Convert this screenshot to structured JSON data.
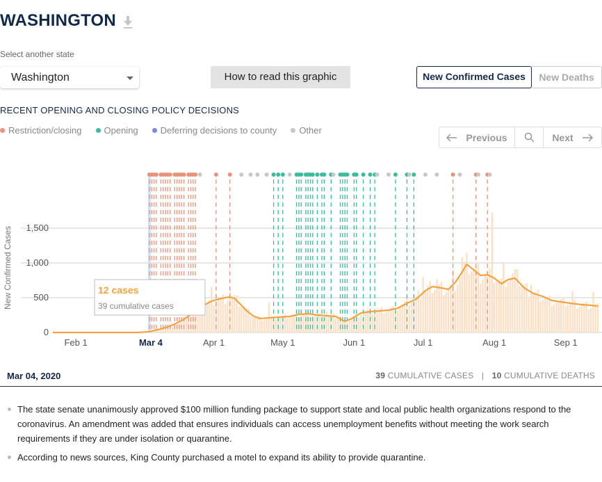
{
  "header": {
    "title": "WASHINGTON",
    "download_icon": "download-icon"
  },
  "state_select": {
    "label": "Select another state",
    "value": "Washington"
  },
  "how_to_button": "How to read this graphic",
  "toggle": {
    "active": "New Confirmed Cases",
    "inactive": "New Deaths"
  },
  "policy_section": {
    "title": "RECENT OPENING AND CLOSING POLICY DECISIONS",
    "legend": [
      {
        "label": "Restriction/closing",
        "color": "#e8937a"
      },
      {
        "label": "Opening",
        "color": "#3dbb9b"
      },
      {
        "label": "Deferring decisions to county",
        "color": "#7b86e8"
      },
      {
        "label": "Other",
        "color": "#c8c8c8"
      }
    ]
  },
  "nav": {
    "previous": "Previous",
    "next": "Next",
    "search_icon": "search-icon"
  },
  "tooltip": {
    "cases": "12 cases",
    "cumulative": "39 cumulative cases"
  },
  "selected_date_label": "Mar 4",
  "details": {
    "date": "Mar 04, 2020",
    "cumulative_cases_value": "39",
    "cumulative_cases_label": "CUMULATIVE CASES",
    "separator": "|",
    "cumulative_deaths_value": "10",
    "cumulative_deaths_label": "CUMULATIVE DEATHS"
  },
  "notes": [
    "The state senate unanimously approved $100 million funding package to support state and local public health organizations respond to the coronavirus. An amendment was added that ensures individuals can access unemployment benefits without meeting the work search requirements if they are under isolation or quarantine.",
    "According to news sources, King County purchased a motel to expand its ability to provide quarantine."
  ],
  "chart_data": {
    "type": "bar",
    "ylabel": "New Confirmed Cases",
    "yticks": [
      0,
      500,
      1000,
      1500
    ],
    "yticks_labels": [
      "0",
      "500",
      "1,000",
      "1,500"
    ],
    "ylim": [
      0,
      1800
    ],
    "x_start": "2020-01-22",
    "x_end": "2020-09-15",
    "x_ticks": [
      {
        "date": "2020-02-01",
        "label": "Feb 1"
      },
      {
        "date": "2020-03-01",
        "label": "M"
      },
      {
        "date": "2020-04-01",
        "label": "Apr 1"
      },
      {
        "date": "2020-05-01",
        "label": "May 1"
      },
      {
        "date": "2020-06-01",
        "label": "Jun 1"
      },
      {
        "date": "2020-07-01",
        "label": "Jul 1"
      },
      {
        "date": "2020-08-01",
        "label": "Aug 1"
      },
      {
        "date": "2020-09-01",
        "label": "Sep 1"
      }
    ],
    "selected_date": "2020-03-04",
    "grid": true,
    "series": [
      {
        "style": "bars",
        "color": "#fbe0c6"
      },
      {
        "name": "7-day average",
        "style": "line",
        "color": "#f5a341"
      }
    ],
    "average_points": [
      [
        "2020-01-22",
        0
      ],
      [
        "2020-02-28",
        0
      ],
      [
        "2020-03-04",
        12
      ],
      [
        "2020-03-10",
        60
      ],
      [
        "2020-03-15",
        120
      ],
      [
        "2020-03-19",
        190
      ],
      [
        "2020-03-23",
        280
      ],
      [
        "2020-03-27",
        380
      ],
      [
        "2020-03-31",
        450
      ],
      [
        "2020-04-03",
        480
      ],
      [
        "2020-04-06",
        500
      ],
      [
        "2020-04-08",
        510
      ],
      [
        "2020-04-10",
        490
      ],
      [
        "2020-04-13",
        390
      ],
      [
        "2020-04-15",
        320
      ],
      [
        "2020-04-18",
        240
      ],
      [
        "2020-04-21",
        200
      ],
      [
        "2020-04-25",
        210
      ],
      [
        "2020-04-29",
        220
      ],
      [
        "2020-05-04",
        230
      ],
      [
        "2020-05-08",
        260
      ],
      [
        "2020-05-12",
        270
      ],
      [
        "2020-05-16",
        250
      ],
      [
        "2020-05-20",
        240
      ],
      [
        "2020-05-24",
        230
      ],
      [
        "2020-05-28",
        160
      ],
      [
        "2020-05-31",
        200
      ],
      [
        "2020-06-04",
        280
      ],
      [
        "2020-06-08",
        300
      ],
      [
        "2020-06-12",
        310
      ],
      [
        "2020-06-16",
        320
      ],
      [
        "2020-06-20",
        350
      ],
      [
        "2020-06-24",
        420
      ],
      [
        "2020-06-28",
        480
      ],
      [
        "2020-07-02",
        600
      ],
      [
        "2020-07-05",
        660
      ],
      [
        "2020-07-09",
        640
      ],
      [
        "2020-07-12",
        620
      ],
      [
        "2020-07-15",
        720
      ],
      [
        "2020-07-18",
        870
      ],
      [
        "2020-07-20",
        980
      ],
      [
        "2020-07-23",
        900
      ],
      [
        "2020-07-26",
        820
      ],
      [
        "2020-07-29",
        830
      ],
      [
        "2020-08-01",
        780
      ],
      [
        "2020-08-04",
        700
      ],
      [
        "2020-08-07",
        760
      ],
      [
        "2020-08-10",
        780
      ],
      [
        "2020-08-14",
        640
      ],
      [
        "2020-08-18",
        560
      ],
      [
        "2020-08-22",
        520
      ],
      [
        "2020-08-26",
        460
      ],
      [
        "2020-08-30",
        440
      ],
      [
        "2020-09-03",
        420
      ],
      [
        "2020-09-08",
        400
      ],
      [
        "2020-09-12",
        390
      ],
      [
        "2020-09-15",
        380
      ]
    ],
    "bar_spikes": [
      [
        "2020-03-31",
        650
      ],
      [
        "2020-04-02",
        560
      ],
      [
        "2020-04-08",
        580
      ],
      [
        "2020-04-25",
        430
      ],
      [
        "2020-05-20",
        300
      ],
      [
        "2020-06-24",
        520
      ],
      [
        "2020-07-01",
        800
      ],
      [
        "2020-07-07",
        760
      ],
      [
        "2020-07-14",
        900
      ],
      [
        "2020-07-18",
        1080
      ],
      [
        "2020-07-25",
        1000
      ],
      [
        "2020-07-31",
        1720
      ],
      [
        "2020-08-05",
        1000
      ],
      [
        "2020-08-11",
        910
      ],
      [
        "2020-08-17",
        680
      ],
      [
        "2020-09-04",
        600
      ],
      [
        "2020-09-13",
        580
      ]
    ],
    "policy_events": [
      [
        "2020-03-04",
        "closing"
      ],
      [
        "2020-03-05",
        "closing"
      ],
      [
        "2020-03-06",
        "closing"
      ],
      [
        "2020-03-07",
        "closing"
      ],
      [
        "2020-03-09",
        "closing"
      ],
      [
        "2020-03-10",
        "closing"
      ],
      [
        "2020-03-11",
        "closing"
      ],
      [
        "2020-03-12",
        "closing"
      ],
      [
        "2020-03-13",
        "closing"
      ],
      [
        "2020-03-15",
        "closing"
      ],
      [
        "2020-03-16",
        "closing"
      ],
      [
        "2020-03-17",
        "closing"
      ],
      [
        "2020-03-18",
        "closing"
      ],
      [
        "2020-03-19",
        "closing"
      ],
      [
        "2020-03-21",
        "closing"
      ],
      [
        "2020-03-22",
        "closing"
      ],
      [
        "2020-03-23",
        "closing"
      ],
      [
        "2020-03-24",
        "closing"
      ],
      [
        "2020-03-26",
        "other"
      ],
      [
        "2020-04-02",
        "closing"
      ],
      [
        "2020-04-08",
        "closing"
      ],
      [
        "2020-04-13",
        "other"
      ],
      [
        "2020-04-17",
        "other"
      ],
      [
        "2020-04-20",
        "other"
      ],
      [
        "2020-04-24",
        "other"
      ],
      [
        "2020-04-27",
        "opening"
      ],
      [
        "2020-04-29",
        "opening"
      ],
      [
        "2020-05-01",
        "opening"
      ],
      [
        "2020-05-04",
        "other"
      ],
      [
        "2020-05-07",
        "opening"
      ],
      [
        "2020-05-08",
        "opening"
      ],
      [
        "2020-05-09",
        "opening"
      ],
      [
        "2020-05-11",
        "opening"
      ],
      [
        "2020-05-12",
        "opening"
      ],
      [
        "2020-05-13",
        "opening"
      ],
      [
        "2020-05-14",
        "opening"
      ],
      [
        "2020-05-16",
        "opening"
      ],
      [
        "2020-05-18",
        "opening"
      ],
      [
        "2020-05-19",
        "opening"
      ],
      [
        "2020-05-22",
        "opening"
      ],
      [
        "2020-05-23",
        "other"
      ],
      [
        "2020-05-26",
        "opening"
      ],
      [
        "2020-05-27",
        "opening"
      ],
      [
        "2020-05-28",
        "opening"
      ],
      [
        "2020-05-29",
        "opening"
      ],
      [
        "2020-06-01",
        "opening"
      ],
      [
        "2020-06-02",
        "opening"
      ],
      [
        "2020-06-05",
        "opening"
      ],
      [
        "2020-06-08",
        "opening"
      ],
      [
        "2020-06-10",
        "opening"
      ],
      [
        "2020-06-11",
        "other"
      ],
      [
        "2020-06-16",
        "other"
      ],
      [
        "2020-06-19",
        "opening"
      ],
      [
        "2020-06-24",
        "opening"
      ],
      [
        "2020-06-25",
        "other"
      ],
      [
        "2020-06-27",
        "opening"
      ],
      [
        "2020-07-02",
        "other"
      ],
      [
        "2020-07-07",
        "other"
      ],
      [
        "2020-07-14",
        "closing"
      ],
      [
        "2020-07-17",
        "other"
      ],
      [
        "2020-07-24",
        "closing"
      ],
      [
        "2020-07-25",
        "other"
      ],
      [
        "2020-07-29",
        "closing"
      ],
      [
        "2020-07-30",
        "other"
      ]
    ]
  }
}
